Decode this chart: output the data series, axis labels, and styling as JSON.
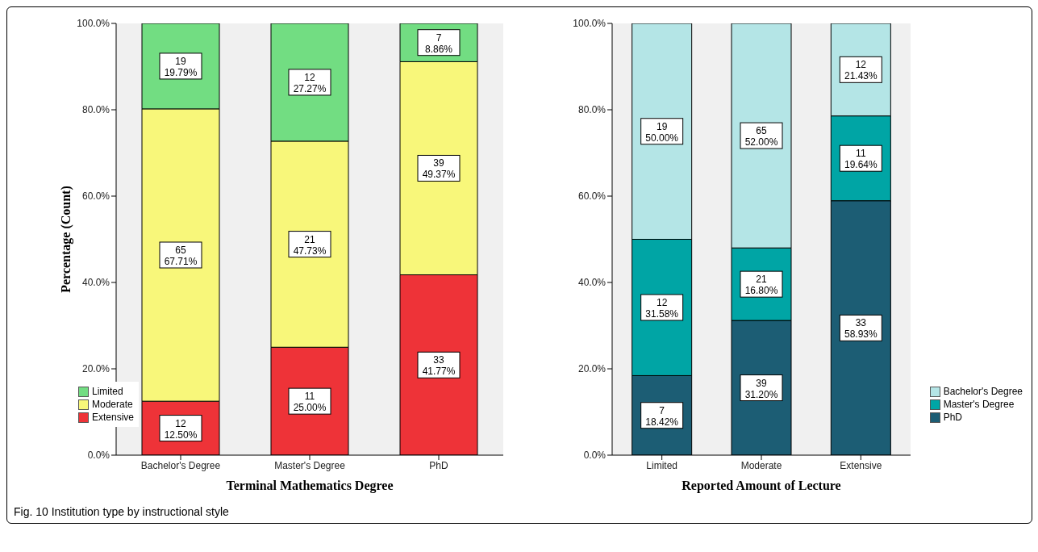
{
  "chart_data": [
    {
      "type": "bar",
      "stacked": true,
      "categories": [
        "Bachelor's Degree",
        "Master's Degree",
        "PhD"
      ],
      "series": [
        {
          "name": "Extensive",
          "color": "#ee3338",
          "values": [
            12.5,
            25.0,
            41.77
          ],
          "value_labels": [
            "12\n12.50%",
            "11\n25.00%",
            "33\n41.77%"
          ]
        },
        {
          "name": "Moderate",
          "color": "#f8f77a",
          "values": [
            67.71,
            47.73,
            49.37
          ],
          "value_labels": [
            "65\n67.71%",
            "21\n47.73%",
            "39\n49.37%"
          ]
        },
        {
          "name": "Limited",
          "color": "#72dd82",
          "values": [
            19.79,
            27.27,
            8.86
          ],
          "value_labels": [
            "19\n19.79%",
            "12\n27.27%",
            "7\n8.86%"
          ]
        }
      ],
      "ylim": [
        0,
        100
      ],
      "yticks": [
        {
          "value": 0,
          "label": "0.0%"
        },
        {
          "value": 20,
          "label": "20.0%"
        },
        {
          "value": 40,
          "label": "40.0%"
        },
        {
          "value": 60,
          "label": "60.0%"
        },
        {
          "value": 80,
          "label": "80.0%"
        },
        {
          "value": 100,
          "label": "100.0%"
        }
      ],
      "ylabel": "Percentage (Count)",
      "xlabel": "Terminal Mathematics Degree",
      "legend": "bottom left",
      "grid": false,
      "annotations": [
        "Fig. 10 Institution type by instructional style"
      ]
    },
    {
      "type": "bar",
      "stacked": true,
      "categories": [
        "Limited",
        "Moderate",
        "Extensive"
      ],
      "series": [
        {
          "name": "PhD",
          "color": "#1c5d74",
          "values": [
            18.42,
            31.2,
            58.93
          ],
          "value_labels": [
            "7\n18.42%",
            "39\n31.20%",
            "33\n58.93%"
          ]
        },
        {
          "name": "Master's Degree",
          "color": "#00a5a5",
          "values": [
            31.58,
            16.8,
            19.64
          ],
          "value_labels": [
            "12\n31.58%",
            "21\n16.80%",
            "11\n19.64%"
          ]
        },
        {
          "name": "Bachelor's Degree",
          "color": "#b4e5e6",
          "values": [
            50.0,
            52.0,
            21.43
          ],
          "value_labels": [
            "19\n50.00%",
            "65\n52.00%",
            "12\n21.43%"
          ]
        }
      ],
      "ylim": [
        0,
        100
      ],
      "yticks": [
        {
          "value": 0,
          "label": "0.0%"
        },
        {
          "value": 20,
          "label": "20.0%"
        },
        {
          "value": 40,
          "label": "40.0%"
        },
        {
          "value": 60,
          "label": "60.0%"
        },
        {
          "value": 80,
          "label": "80.0%"
        },
        {
          "value": 100,
          "label": "100.0%"
        }
      ],
      "xlabel": "Reported Amount of Lecture",
      "legend": "bottom right",
      "grid": false
    }
  ]
}
